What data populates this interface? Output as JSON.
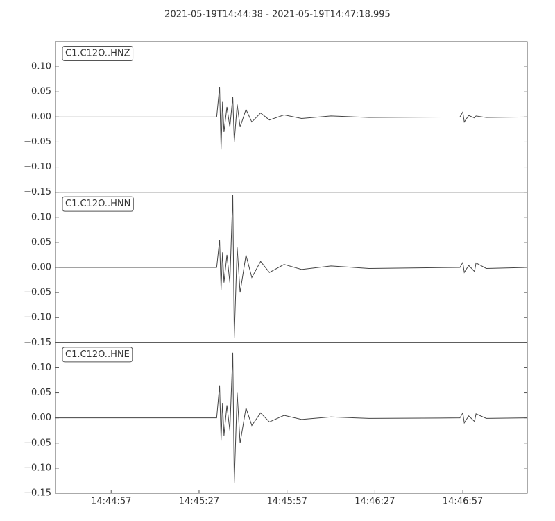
{
  "chart_data": {
    "type": "line",
    "title": "2021-05-19T14:44:38  -  2021-05-19T14:47:18.995",
    "x": [
      "14:44:38",
      "14:45:33",
      "14:45:34",
      "14:45:34.5",
      "14:45:35",
      "14:45:35.5",
      "14:45:36.5",
      "14:45:37.5",
      "14:45:38.5",
      "14:45:39",
      "14:45:40",
      "14:45:41",
      "14:45:43",
      "14:45:45",
      "14:45:48",
      "14:45:51",
      "14:45:56",
      "14:46:02",
      "14:46:12",
      "14:46:25",
      "14:46:56",
      "14:46:57",
      "14:46:57.5",
      "14:46:59",
      "14:47:01",
      "14:47:01.5",
      "14:47:05",
      "14:47:18.995"
    ],
    "xlim": [
      "14:44:38",
      "14:47:18.995"
    ],
    "xticks": [
      "14:44:57",
      "14:45:27",
      "14:45:57",
      "14:46:27",
      "14:46:57"
    ],
    "ylim": [
      -0.15,
      0.15
    ],
    "yticks": [
      {
        "value": -0.15,
        "label": "−0.15"
      },
      {
        "value": -0.1,
        "label": "−0.10"
      },
      {
        "value": -0.05,
        "label": "−0.05"
      },
      {
        "value": 0,
        "label": "0.00"
      },
      {
        "value": 0.05,
        "label": "0.05"
      },
      {
        "value": 0.1,
        "label": "0.10"
      }
    ],
    "series": [
      {
        "name": "C1.C12O..HNZ",
        "color": "#444444",
        "values": [
          0,
          0,
          0.06,
          -0.065,
          0.03,
          -0.03,
          0.02,
          -0.02,
          0.04,
          -0.05,
          0.025,
          -0.02,
          0.015,
          -0.01,
          0.008,
          -0.006,
          0.004,
          -0.003,
          0.002,
          -0.001,
          0,
          0.01,
          -0.01,
          0.003,
          -0.002,
          0.002,
          -0.001,
          0
        ]
      },
      {
        "name": "C1.C12O..HNN",
        "color": "#444444",
        "values": [
          0,
          0,
          0.055,
          -0.045,
          0.03,
          -0.03,
          0.025,
          -0.03,
          0.145,
          -0.14,
          0.04,
          -0.05,
          0.025,
          -0.02,
          0.012,
          -0.01,
          0.006,
          -0.004,
          0.003,
          -0.002,
          0,
          0.01,
          -0.01,
          0.004,
          -0.008,
          0.009,
          -0.002,
          0
        ]
      },
      {
        "name": "C1.C12O..HNE",
        "color": "#444444",
        "values": [
          0,
          0,
          0.065,
          -0.045,
          0.03,
          -0.035,
          0.025,
          -0.025,
          0.13,
          -0.13,
          0.05,
          -0.05,
          0.02,
          -0.015,
          0.01,
          -0.008,
          0.005,
          -0.003,
          0.002,
          -0.001,
          0,
          0.01,
          -0.01,
          0.004,
          -0.007,
          0.008,
          -0.001,
          0
        ]
      }
    ]
  }
}
